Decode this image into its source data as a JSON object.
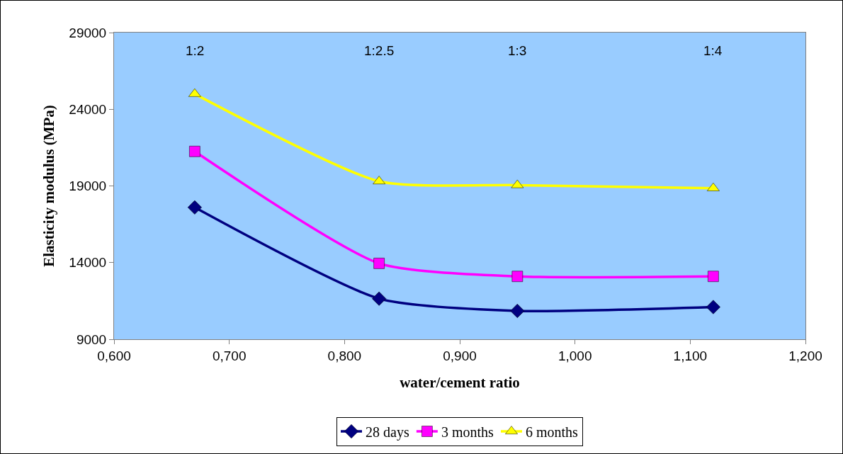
{
  "chart_data": {
    "type": "line",
    "xlabel": "water/cement ratio",
    "ylabel": "Elasticity modulus (MPa)",
    "x": [
      0.67,
      0.83,
      0.95,
      1.12
    ],
    "series": [
      {
        "name": "28 days",
        "color": "#000080",
        "marker": "diamond",
        "values": [
          17600,
          11650,
          10850,
          11100
        ]
      },
      {
        "name": "3 months",
        "color": "#ff00ff",
        "marker": "square",
        "values": [
          21250,
          13950,
          13100,
          13100
        ]
      },
      {
        "name": "6 months",
        "color": "#ffff00",
        "marker": "triangle",
        "values": [
          25000,
          19300,
          19050,
          18850
        ]
      }
    ],
    "xlim": [
      0.6,
      1.2
    ],
    "xticks": [
      {
        "value": 0.6,
        "label": "0,600"
      },
      {
        "value": 0.7,
        "label": "0,700"
      },
      {
        "value": 0.8,
        "label": "0,800"
      },
      {
        "value": 0.9,
        "label": "0,900"
      },
      {
        "value": 1.0,
        "label": "1,000"
      },
      {
        "value": 1.1,
        "label": "1,100"
      },
      {
        "value": 1.2,
        "label": "1,200"
      }
    ],
    "ylim": [
      9000,
      29000
    ],
    "yticks": [
      9000,
      14000,
      19000,
      24000,
      29000
    ],
    "annotations": [
      "1:2",
      "1:2.5",
      "1:3",
      "1:4"
    ],
    "grid": false,
    "legend": "bottom"
  }
}
